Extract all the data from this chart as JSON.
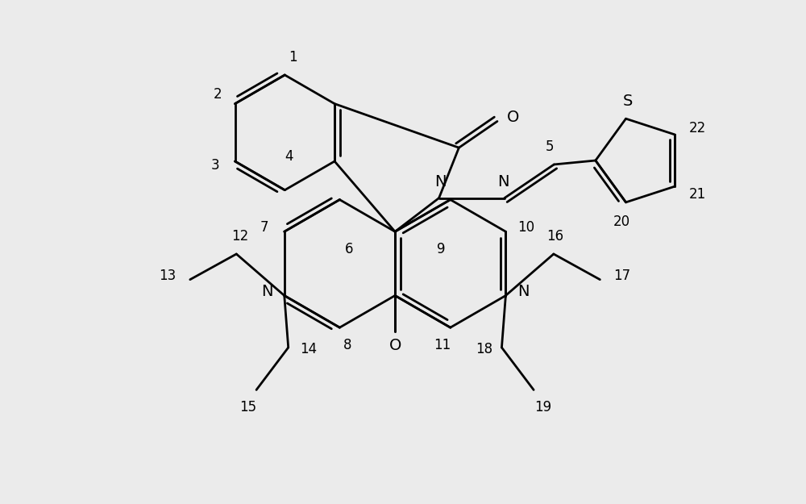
{
  "bg_color": "#ebebeb",
  "line_color": "#000000",
  "lw": 2.0,
  "fs": 13,
  "figsize": [
    10.0,
    6.25
  ],
  "dpi": 100,
  "xlim": [
    0,
    10
  ],
  "ylim": [
    0,
    6.25
  ]
}
